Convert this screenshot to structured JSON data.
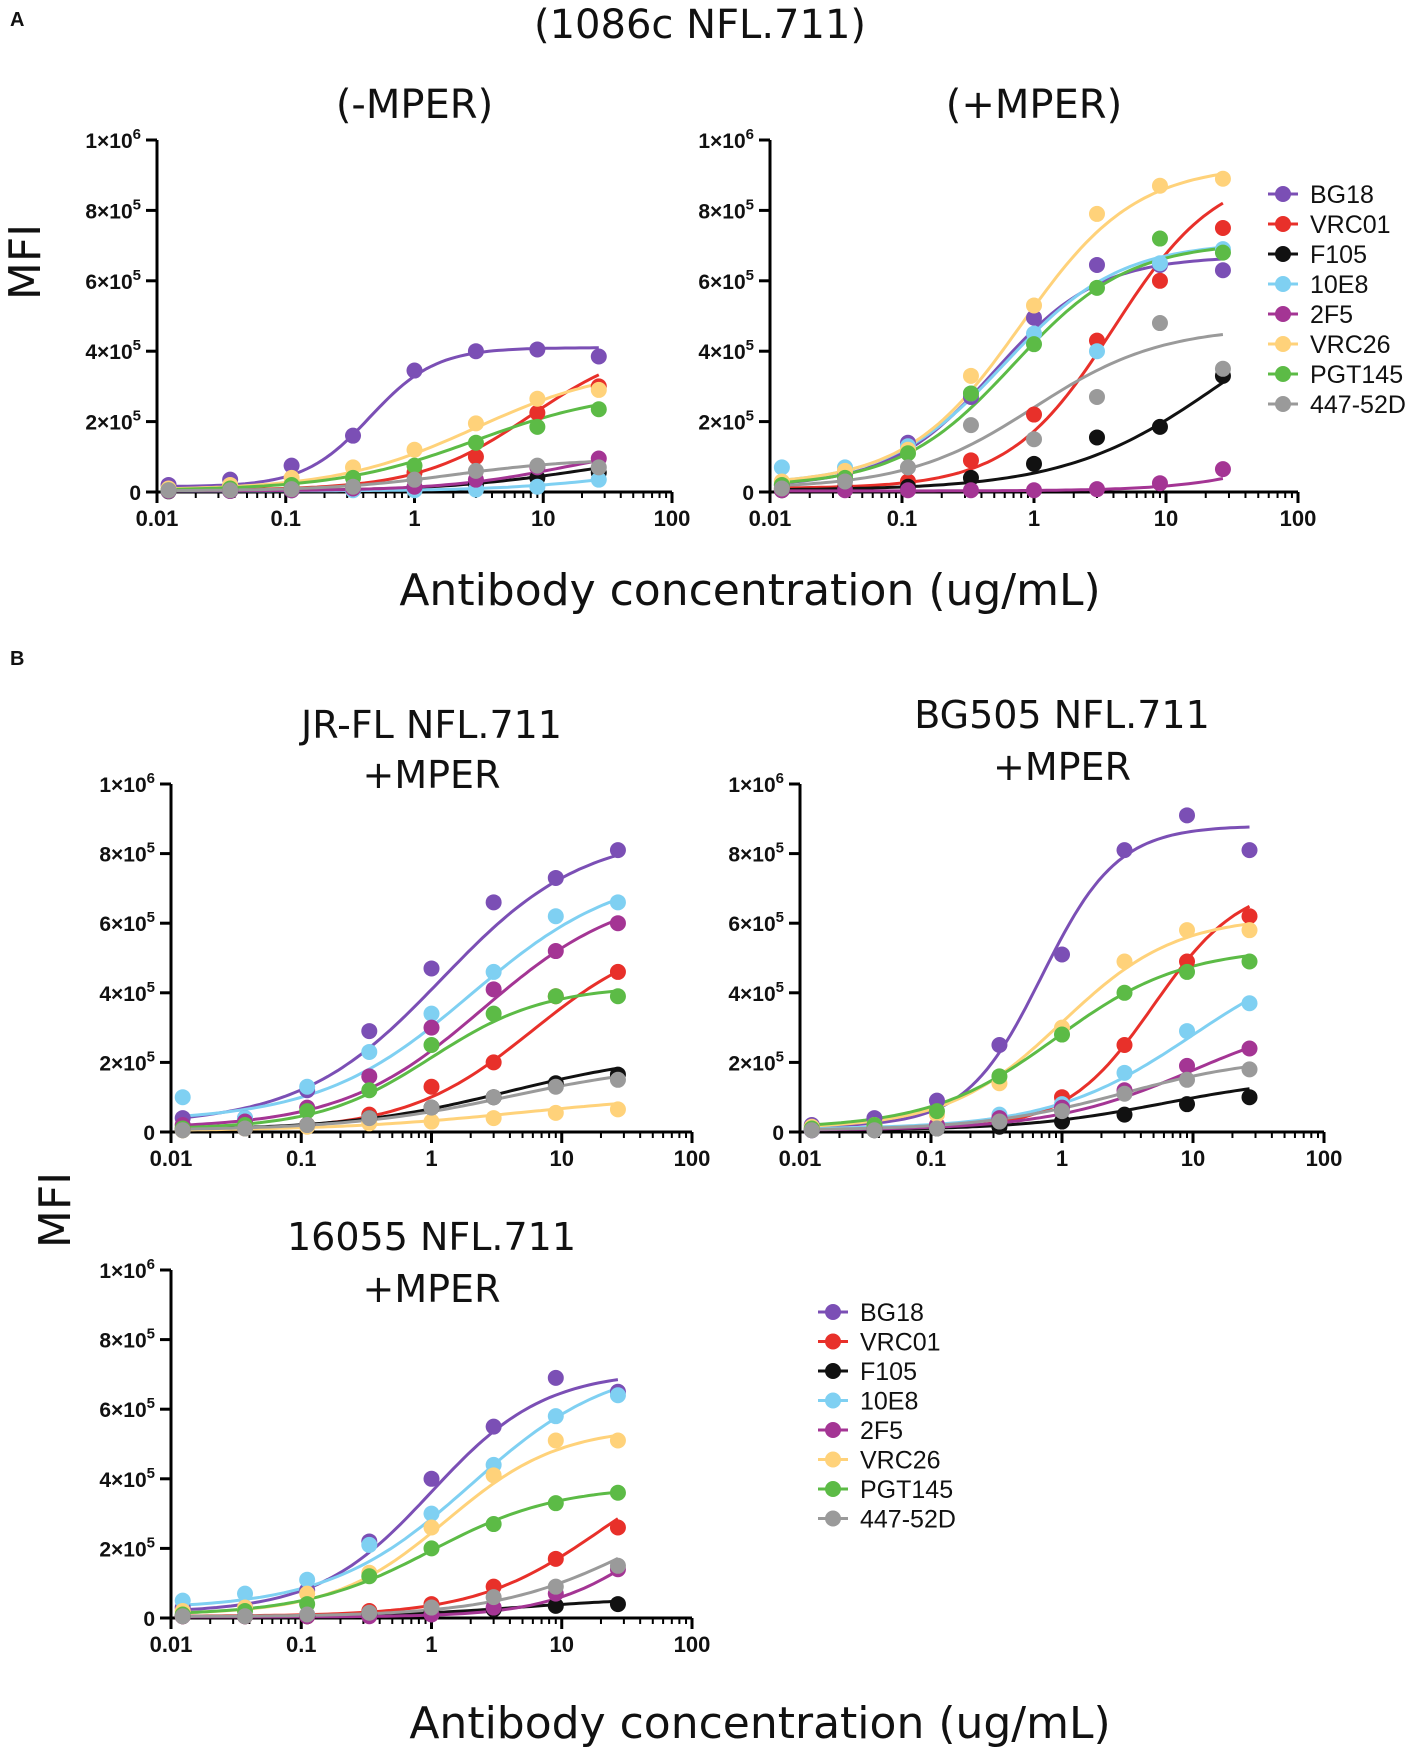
{
  "figure": {
    "panel_labels": [
      "A",
      "B"
    ],
    "top_title": "(1086c NFL.711)",
    "x_axis_label": "Antibody concentration (ug/mL)",
    "y_axis_label": "MFI"
  },
  "legend": {
    "items": [
      {
        "name": "BG18",
        "color": "#7B4FB5"
      },
      {
        "name": "VRC01",
        "color": "#E8302A"
      },
      {
        "name": "F105",
        "color": "#111111"
      },
      {
        "name": "10E8",
        "color": "#7FD0F2"
      },
      {
        "name": "2F5",
        "color": "#A43594"
      },
      {
        "name": "VRC26",
        "color": "#FFD27A"
      },
      {
        "name": "PGT145",
        "color": "#5CBB46"
      },
      {
        "name": "447-52D",
        "color": "#9A9A9A"
      }
    ]
  },
  "chart_data": [
    {
      "type": "scatter",
      "title": "(-MPER)",
      "xlabel": "Antibody concentration (ug/mL)",
      "ylabel": "MFI",
      "xscale": "log",
      "xlim": [
        0.01,
        100
      ],
      "ylim": [
        0,
        1000000
      ],
      "x_ticks": [
        "0.01",
        "0.1",
        "1",
        "10",
        "100"
      ],
      "y_ticks": [
        {
          "base": "0",
          "exp": ""
        },
        {
          "base": "2×10",
          "exp": "5"
        },
        {
          "base": "4×10",
          "exp": "5"
        },
        {
          "base": "6×10",
          "exp": "5"
        },
        {
          "base": "8×10",
          "exp": "5"
        },
        {
          "base": "1×10",
          "exp": "6"
        }
      ],
      "x": [
        0.0123,
        0.037,
        0.111,
        0.333,
        1,
        3,
        9,
        27
      ],
      "series": [
        {
          "name": "BG18",
          "values": [
            20000,
            35000,
            75000,
            160000,
            345000,
            400000,
            405000,
            385000
          ],
          "curve": [
            15000,
            410000,
            0.45,
            1.7
          ]
        },
        {
          "name": "VRC01",
          "values": [
            5000,
            5000,
            8000,
            15000,
            55000,
            100000,
            225000,
            300000
          ],
          "curve": [
            5000,
            430000,
            8,
            1.0
          ]
        },
        {
          "name": "F105",
          "values": [
            2000,
            3000,
            5000,
            8000,
            12000,
            22000,
            40000,
            55000
          ],
          "curve": [
            3000,
            120000,
            20,
            0.8
          ]
        },
        {
          "name": "10E8",
          "values": [
            3000,
            3000,
            5000,
            5000,
            5000,
            7000,
            15000,
            35000
          ],
          "curve": [
            3000,
            80000,
            40,
            0.9
          ]
        },
        {
          "name": "2F5",
          "values": [
            3000,
            3000,
            5000,
            10000,
            15000,
            35000,
            70000,
            95000
          ],
          "curve": [
            3000,
            140000,
            15,
            0.9
          ]
        },
        {
          "name": "VRC26",
          "values": [
            10000,
            20000,
            40000,
            70000,
            120000,
            195000,
            265000,
            290000
          ],
          "curve": [
            5000,
            360000,
            3,
            0.8
          ]
        },
        {
          "name": "PGT145",
          "values": [
            5000,
            10000,
            20000,
            40000,
            75000,
            140000,
            185000,
            235000
          ],
          "curve": [
            4000,
            290000,
            3,
            0.8
          ]
        },
        {
          "name": "447-52D",
          "values": [
            5000,
            5000,
            8000,
            15000,
            35000,
            60000,
            75000,
            70000
          ],
          "curve": [
            3000,
            95000,
            2,
            0.9
          ]
        }
      ]
    },
    {
      "type": "scatter",
      "title": "(+MPER)",
      "xlabel": "Antibody concentration (ug/mL)",
      "ylabel": "MFI",
      "xscale": "log",
      "xlim": [
        0.01,
        100
      ],
      "ylim": [
        0,
        1000000
      ],
      "x_ticks": [
        "0.01",
        "0.1",
        "1",
        "10",
        "100"
      ],
      "y_ticks": [
        {
          "base": "0",
          "exp": ""
        },
        {
          "base": "2×10",
          "exp": "5"
        },
        {
          "base": "4×10",
          "exp": "5"
        },
        {
          "base": "6×10",
          "exp": "5"
        },
        {
          "base": "8×10",
          "exp": "5"
        },
        {
          "base": "1×10",
          "exp": "6"
        }
      ],
      "x": [
        0.0123,
        0.037,
        0.111,
        0.333,
        1,
        3,
        9,
        27
      ],
      "series": [
        {
          "name": "BG18",
          "values": [
            20000,
            50000,
            140000,
            270000,
            495000,
            645000,
            645000,
            630000
          ],
          "curve": [
            15000,
            670000,
            0.5,
            1.1
          ]
        },
        {
          "name": "VRC01",
          "values": [
            10000,
            15000,
            30000,
            90000,
            220000,
            430000,
            600000,
            750000
          ],
          "curve": [
            10000,
            920000,
            4,
            1.1
          ]
        },
        {
          "name": "F105",
          "values": [
            5000,
            8000,
            15000,
            40000,
            80000,
            155000,
            185000,
            330000
          ],
          "curve": [
            5000,
            600000,
            25,
            0.75
          ]
        },
        {
          "name": "10E8",
          "values": [
            70000,
            70000,
            130000,
            280000,
            450000,
            400000,
            650000,
            690000
          ],
          "curve": [
            20000,
            710000,
            0.6,
            1.0
          ]
        },
        {
          "name": "2F5",
          "values": [
            5000,
            5000,
            5000,
            5000,
            5000,
            8000,
            25000,
            65000
          ],
          "curve": [
            3000,
            300000,
            200,
            1.0
          ]
        },
        {
          "name": "VRC26",
          "values": [
            30000,
            60000,
            120000,
            330000,
            530000,
            790000,
            870000,
            890000
          ],
          "curve": [
            20000,
            930000,
            0.8,
            1.0
          ]
        },
        {
          "name": "PGT145",
          "values": [
            20000,
            40000,
            110000,
            280000,
            420000,
            580000,
            720000,
            680000
          ],
          "curve": [
            15000,
            710000,
            0.7,
            1.0
          ]
        },
        {
          "name": "447-52D",
          "values": [
            10000,
            30000,
            70000,
            190000,
            150000,
            270000,
            480000,
            350000
          ],
          "curve": [
            10000,
            470000,
            1.0,
            0.9
          ]
        }
      ]
    },
    {
      "type": "scatter",
      "title": "JR-FL NFL.711",
      "subtitle": "+MPER",
      "xlabel": "Antibody concentration (ug/mL)",
      "ylabel": "MFI",
      "xscale": "log",
      "xlim": [
        0.01,
        100
      ],
      "ylim": [
        0,
        1000000
      ],
      "x_ticks": [
        "0.01",
        "0.1",
        "1",
        "10",
        "100"
      ],
      "y_ticks": [
        {
          "base": "0",
          "exp": ""
        },
        {
          "base": "2×10",
          "exp": "5"
        },
        {
          "base": "4×10",
          "exp": "5"
        },
        {
          "base": "6×10",
          "exp": "5"
        },
        {
          "base": "8×10",
          "exp": "5"
        },
        {
          "base": "1×10",
          "exp": "6"
        }
      ],
      "x": [
        0.0123,
        0.037,
        0.111,
        0.333,
        1,
        3,
        9,
        27
      ],
      "series": [
        {
          "name": "BG18",
          "values": [
            40000,
            40000,
            120000,
            290000,
            470000,
            660000,
            730000,
            810000
          ],
          "curve": [
            20000,
            860000,
            1.2,
            0.8
          ]
        },
        {
          "name": "VRC01",
          "values": [
            10000,
            10000,
            20000,
            50000,
            130000,
            200000,
            390000,
            460000
          ],
          "curve": [
            5000,
            580000,
            6,
            0.9
          ]
        },
        {
          "name": "F105",
          "values": [
            5000,
            10000,
            20000,
            40000,
            70000,
            100000,
            140000,
            165000
          ],
          "curve": [
            5000,
            230000,
            4,
            0.7
          ]
        },
        {
          "name": "10E8",
          "values": [
            100000,
            40000,
            130000,
            230000,
            340000,
            460000,
            620000,
            660000
          ],
          "curve": [
            30000,
            760000,
            2,
            0.75
          ]
        },
        {
          "name": "2F5",
          "values": [
            20000,
            30000,
            70000,
            160000,
            300000,
            410000,
            520000,
            600000
          ],
          "curve": [
            10000,
            700000,
            2.5,
            0.8
          ]
        },
        {
          "name": "VRC26",
          "values": [
            5000,
            10000,
            15000,
            25000,
            30000,
            40000,
            55000,
            65000
          ],
          "curve": [
            3000,
            110000,
            5,
            0.6
          ]
        },
        {
          "name": "PGT145",
          "values": [
            10000,
            20000,
            60000,
            120000,
            250000,
            340000,
            390000,
            390000
          ],
          "curve": [
            8000,
            420000,
            1.0,
            1.0
          ]
        },
        {
          "name": "447-52D",
          "values": [
            5000,
            10000,
            20000,
            40000,
            70000,
            100000,
            130000,
            150000
          ],
          "curve": [
            5000,
            200000,
            4,
            0.7
          ]
        }
      ]
    },
    {
      "type": "scatter",
      "title": "BG505 NFL.711",
      "subtitle": "+MPER",
      "xlabel": "Antibody concentration (ug/mL)",
      "ylabel": "MFI",
      "xscale": "log",
      "xlim": [
        0.01,
        100
      ],
      "ylim": [
        0,
        1000000
      ],
      "x_ticks": [
        "0.01",
        "0.1",
        "1",
        "10",
        "100"
      ],
      "y_ticks": [
        {
          "base": "0",
          "exp": ""
        },
        {
          "base": "2×10",
          "exp": "5"
        },
        {
          "base": "4×10",
          "exp": "5"
        },
        {
          "base": "6×10",
          "exp": "5"
        },
        {
          "base": "8×10",
          "exp": "5"
        },
        {
          "base": "1×10",
          "exp": "6"
        }
      ],
      "x": [
        0.0123,
        0.037,
        0.111,
        0.333,
        1,
        3,
        9,
        27
      ],
      "series": [
        {
          "name": "BG18",
          "values": [
            20000,
            40000,
            90000,
            250000,
            510000,
            810000,
            910000,
            810000
          ],
          "curve": [
            15000,
            880000,
            0.7,
            1.5
          ]
        },
        {
          "name": "VRC01",
          "values": [
            10000,
            10000,
            20000,
            40000,
            100000,
            250000,
            490000,
            620000
          ],
          "curve": [
            8000,
            720000,
            5,
            1.3
          ]
        },
        {
          "name": "F105",
          "values": [
            5000,
            5000,
            10000,
            15000,
            30000,
            50000,
            80000,
            100000
          ],
          "curve": [
            5000,
            160000,
            6,
            0.8
          ]
        },
        {
          "name": "10E8",
          "values": [
            5000,
            10000,
            20000,
            50000,
            80000,
            170000,
            290000,
            370000
          ],
          "curve": [
            8000,
            550000,
            10,
            0.8
          ]
        },
        {
          "name": "2F5",
          "values": [
            5000,
            10000,
            20000,
            40000,
            70000,
            120000,
            190000,
            240000
          ],
          "curve": [
            5000,
            350000,
            10,
            0.8
          ]
        },
        {
          "name": "VRC26",
          "values": [
            15000,
            20000,
            50000,
            140000,
            300000,
            490000,
            580000,
            580000
          ],
          "curve": [
            10000,
            620000,
            1.0,
            1.0
          ]
        },
        {
          "name": "PGT145",
          "values": [
            10000,
            20000,
            60000,
            160000,
            280000,
            400000,
            460000,
            490000
          ],
          "curve": [
            10000,
            530000,
            0.9,
            0.9
          ]
        },
        {
          "name": "447-52D",
          "values": [
            5000,
            5000,
            10000,
            30000,
            60000,
            110000,
            150000,
            180000
          ],
          "curve": [
            5000,
            220000,
            3,
            0.8
          ]
        }
      ]
    },
    {
      "type": "scatter",
      "title": "16055 NFL.711",
      "subtitle": "+MPER",
      "xlabel": "Antibody concentration (ug/mL)",
      "ylabel": "MFI",
      "xscale": "log",
      "xlim": [
        0.01,
        100
      ],
      "ylim": [
        0,
        1000000
      ],
      "x_ticks": [
        "0.01",
        "0.1",
        "1",
        "10",
        "100"
      ],
      "y_ticks": [
        {
          "base": "0",
          "exp": ""
        },
        {
          "base": "2×10",
          "exp": "5"
        },
        {
          "base": "4×10",
          "exp": "5"
        },
        {
          "base": "6×10",
          "exp": "5"
        },
        {
          "base": "8×10",
          "exp": "5"
        },
        {
          "base": "1×10",
          "exp": "6"
        }
      ],
      "x": [
        0.0123,
        0.037,
        0.111,
        0.333,
        1,
        3,
        9,
        27
      ],
      "series": [
        {
          "name": "BG18",
          "values": [
            30000,
            30000,
            80000,
            220000,
            400000,
            550000,
            690000,
            650000
          ],
          "curve": [
            15000,
            710000,
            1.0,
            1.0
          ]
        },
        {
          "name": "VRC01",
          "values": [
            5000,
            5000,
            5000,
            20000,
            40000,
            90000,
            170000,
            260000
          ],
          "curve": [
            5000,
            500000,
            20,
            0.9
          ]
        },
        {
          "name": "F105",
          "values": [
            5000,
            5000,
            5000,
            10000,
            15000,
            25000,
            35000,
            40000
          ],
          "curve": [
            3000,
            60000,
            5,
            0.8
          ]
        },
        {
          "name": "10E8",
          "values": [
            50000,
            70000,
            110000,
            210000,
            300000,
            440000,
            580000,
            640000
          ],
          "curve": [
            25000,
            740000,
            2,
            0.8
          ]
        },
        {
          "name": "2F5",
          "values": [
            5000,
            5000,
            5000,
            5000,
            10000,
            30000,
            70000,
            140000
          ],
          "curve": [
            3000,
            400000,
            50,
            1.1
          ]
        },
        {
          "name": "VRC26",
          "values": [
            20000,
            30000,
            70000,
            130000,
            260000,
            410000,
            510000,
            510000
          ],
          "curve": [
            10000,
            550000,
            1.3,
            1.0
          ]
        },
        {
          "name": "PGT145",
          "values": [
            10000,
            20000,
            40000,
            120000,
            200000,
            270000,
            330000,
            360000
          ],
          "curve": [
            8000,
            380000,
            1.0,
            0.9
          ]
        },
        {
          "name": "447-52D",
          "values": [
            5000,
            5000,
            10000,
            15000,
            30000,
            60000,
            90000,
            150000
          ],
          "curve": [
            4000,
            400000,
            40,
            0.8
          ]
        }
      ]
    }
  ]
}
